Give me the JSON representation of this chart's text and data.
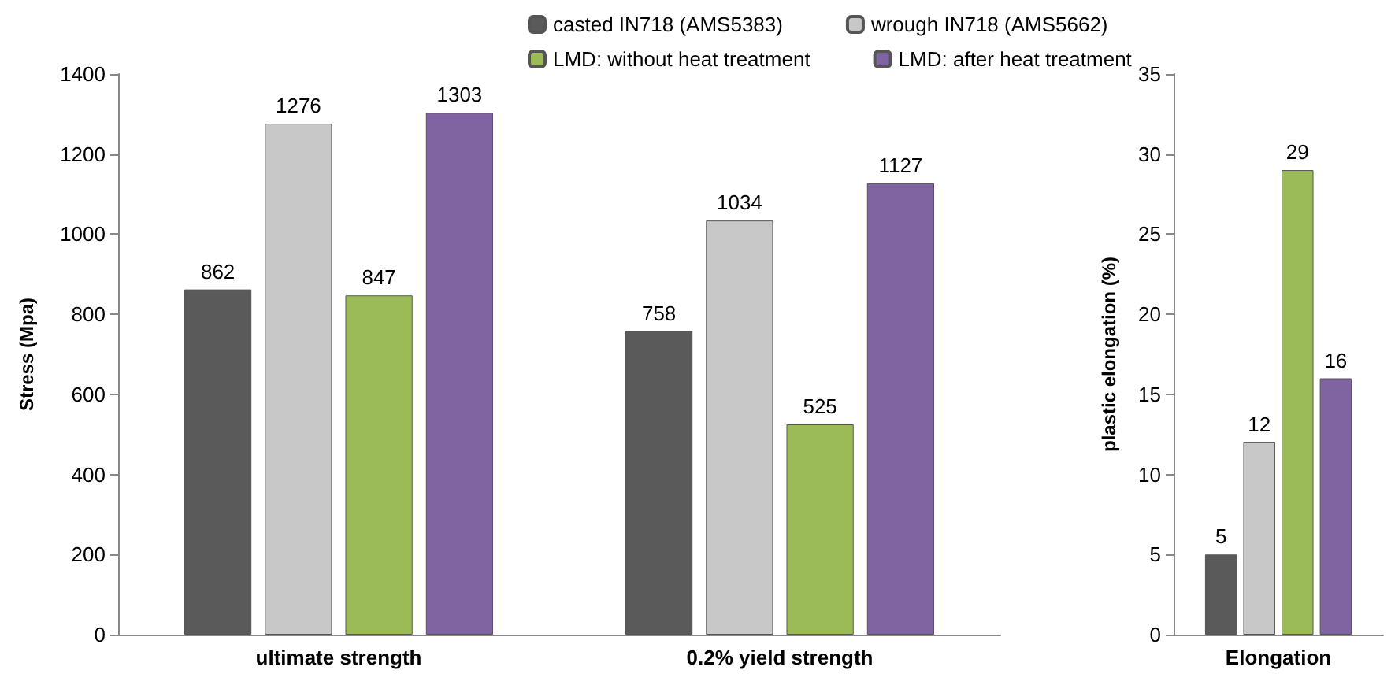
{
  "chart_data": [
    {
      "type": "bar",
      "ylabel": "Stress (Mpa)",
      "categories": [
        "ultimate strength",
        "0.2% yield strength"
      ],
      "series": [
        {
          "name": "casted IN718 (AMS5383)",
          "color": "#5a5a5a",
          "values": [
            862,
            758
          ]
        },
        {
          "name": "wrough IN718 (AMS5662)",
          "color": "#c8c8c8",
          "values": [
            1276,
            1034
          ]
        },
        {
          "name": "LMD: without heat treatment",
          "color": "#9bbb59",
          "values": [
            847,
            525
          ]
        },
        {
          "name": "LMD: after heat treatment",
          "color": "#8064a2",
          "values": [
            1303,
            1127
          ]
        }
      ],
      "ylim": [
        0,
        1400
      ],
      "yticks": [
        0,
        200,
        400,
        600,
        800,
        1000,
        1200,
        1400
      ],
      "grid": false,
      "legend": "top",
      "data_labels": true
    },
    {
      "type": "bar",
      "ylabel": "plastic elongation (%)",
      "categories": [
        "Elongation"
      ],
      "series": [
        {
          "color": "#5a5a5a",
          "values": [
            5
          ]
        },
        {
          "color": "#c8c8c8",
          "values": [
            12
          ]
        },
        {
          "color": "#9bbb59",
          "values": [
            29
          ]
        },
        {
          "color": "#8064a2",
          "values": [
            16
          ]
        }
      ],
      "ylim": [
        0,
        35
      ],
      "yticks": [
        0,
        5,
        10,
        15,
        20,
        25,
        30,
        35
      ],
      "grid": false,
      "legend": false,
      "data_labels": true
    }
  ]
}
